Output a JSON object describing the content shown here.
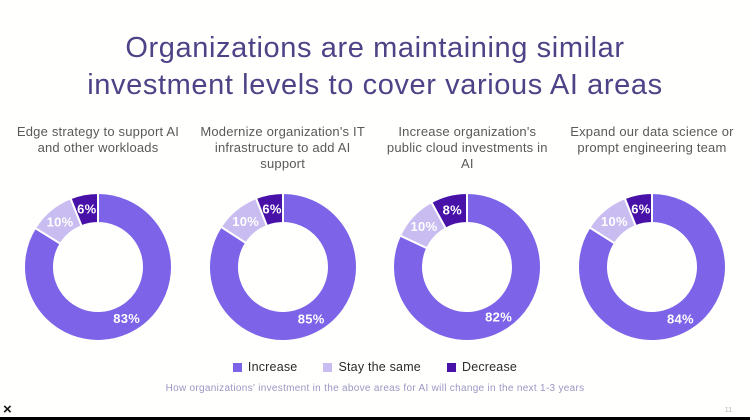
{
  "slide": {
    "title_lines": [
      "Organizations are maintaining similar",
      "investment levels to cover various AI areas"
    ],
    "footer_note": "How organizations' investment in the above areas for AI will change in the next 1-3 years",
    "page_number": "11",
    "close_glyph": "×"
  },
  "colors": {
    "background": "#fffffd",
    "title_text": "#4f4287",
    "chart_title_text": "#595959",
    "footer_text": "#9b97c4",
    "increase": "#7c63e8",
    "stay_the_same": "#c8bcf1",
    "decrease": "#4812a8"
  },
  "legend": [
    {
      "label": "Increase",
      "color": "#7c63e8"
    },
    {
      "label": "Stay the same",
      "color": "#c8bcf1"
    },
    {
      "label": "Decrease",
      "color": "#4812a8"
    }
  ],
  "chart_data": [
    {
      "type": "pie",
      "subtype": "donut",
      "title": "Edge strategy to support AI and other workloads",
      "labels": [
        "Increase",
        "Stay the same",
        "Decrease"
      ],
      "values": [
        83,
        10,
        6
      ],
      "value_labels": [
        "83%",
        "10%",
        "6%"
      ],
      "legend_position": "bottom"
    },
    {
      "type": "pie",
      "subtype": "donut",
      "title": "Modernize organization's IT infrastructure to add AI support",
      "labels": [
        "Increase",
        "Stay the same",
        "Decrease"
      ],
      "values": [
        85,
        10,
        6
      ],
      "value_labels": [
        "85%",
        "10%",
        "6%"
      ],
      "legend_position": "bottom"
    },
    {
      "type": "pie",
      "subtype": "donut",
      "title": "Increase organization's public cloud investments in AI",
      "labels": [
        "Increase",
        "Stay the same",
        "Decrease"
      ],
      "values": [
        82,
        10,
        8
      ],
      "value_labels": [
        "82%",
        "10%",
        "8%"
      ],
      "legend_position": "bottom"
    },
    {
      "type": "pie",
      "subtype": "donut",
      "title": "Expand our data science or prompt engineering team",
      "labels": [
        "Increase",
        "Stay the same",
        "Decrease"
      ],
      "values": [
        84,
        10,
        6
      ],
      "value_labels": [
        "84%",
        "10%",
        "6%"
      ],
      "legend_position": "bottom"
    }
  ]
}
